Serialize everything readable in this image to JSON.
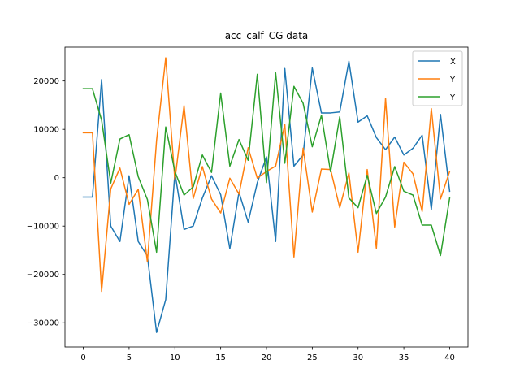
{
  "chart_data": {
    "type": "line",
    "title": "acc_calf_CG data",
    "xlabel": "",
    "ylabel": "",
    "xlim": [
      -2,
      42
    ],
    "ylim": [
      -35000,
      27000
    ],
    "x_ticks": [
      0,
      5,
      10,
      15,
      20,
      25,
      30,
      35,
      40
    ],
    "y_ticks": [
      -30000,
      -20000,
      -10000,
      0,
      10000,
      20000
    ],
    "grid": false,
    "legend_placement": "top-right",
    "x": [
      0,
      1,
      2,
      3,
      4,
      5,
      6,
      7,
      8,
      9,
      10,
      11,
      12,
      13,
      14,
      15,
      16,
      17,
      18,
      19,
      20,
      21,
      22,
      23,
      24,
      25,
      26,
      27,
      28,
      29,
      30,
      31,
      32,
      33,
      34,
      35,
      36,
      37,
      38,
      39,
      40
    ],
    "series": [
      {
        "name": "X",
        "color": "#1f77b4",
        "values": [
          -4000,
          -4000,
          20300,
          -10000,
          -13200,
          400,
          -13200,
          -16200,
          -32000,
          -25200,
          1000,
          -10700,
          -10000,
          -4200,
          400,
          -3500,
          -14700,
          -3000,
          -9200,
          -1000,
          4300,
          -13200,
          22600,
          2400,
          4700,
          22700,
          13400,
          13400,
          13600,
          24100,
          11500,
          12800,
          8300,
          5800,
          8400,
          4700,
          6100,
          8800,
          -6600,
          13100,
          -2800
        ]
      },
      {
        "name": "Y",
        "color": "#ff7f0e",
        "values": [
          9300,
          9300,
          -23500,
          -2300,
          2000,
          -5500,
          -2400,
          -17400,
          7700,
          24800,
          -500,
          14900,
          -4300,
          2300,
          -4400,
          -7300,
          -100,
          -3400,
          6200,
          -100,
          1300,
          2400,
          11000,
          -16400,
          6100,
          -7100,
          1800,
          1700,
          -6200,
          1000,
          -15400,
          1700,
          -14600,
          16400,
          -10200,
          3200,
          800,
          -7000,
          14300,
          -4400,
          1300
        ]
      },
      {
        "name": "Y",
        "color": "#2ca02c",
        "values": [
          18400,
          18400,
          11900,
          -1100,
          8000,
          8900,
          200,
          -4500,
          -15400,
          10500,
          1300,
          -3600,
          -1900,
          4700,
          1100,
          17500,
          2400,
          7900,
          3600,
          21400,
          -1000,
          21700,
          3000,
          18900,
          15400,
          6400,
          12900,
          1200,
          12600,
          -4200,
          -6200,
          500,
          -7400,
          -4000,
          2300,
          -2800,
          -3600,
          -9800,
          -9800,
          -16100,
          -4200
        ]
      }
    ]
  }
}
